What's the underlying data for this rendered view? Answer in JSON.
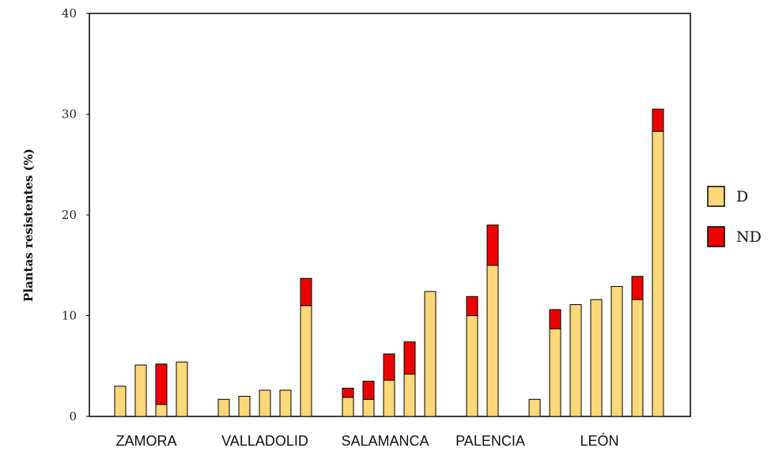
{
  "chart_data": {
    "type": "bar",
    "stacked": true,
    "title": "",
    "xlabel": "",
    "ylabel": "Plantas resistentes (%)",
    "ylim": [
      0,
      40
    ],
    "yticks": [
      "0",
      "10",
      "20",
      "30",
      "40"
    ],
    "grid": false,
    "legend_position": "right",
    "groups": [
      "ZAMORA",
      "VALLADOLID",
      "SALAMANCA",
      "PALENCIA",
      "LEÓN"
    ],
    "group_sizes": [
      4,
      5,
      5,
      2,
      7
    ],
    "series": [
      {
        "name": "D",
        "color": "#FED778",
        "values": [
          3.0,
          5.1,
          1.2,
          5.4,
          1.7,
          2.0,
          2.6,
          2.6,
          11.0,
          1.9,
          1.7,
          3.6,
          4.2,
          12.4,
          10.0,
          15.0,
          1.7,
          8.7,
          11.1,
          11.6,
          12.9,
          11.6,
          28.3
        ]
      },
      {
        "name": "ND",
        "color": "#EE0000",
        "values": [
          0,
          0,
          4.0,
          0,
          0,
          0,
          0,
          0,
          2.7,
          0.9,
          1.8,
          2.6,
          3.2,
          0,
          1.9,
          4.0,
          0,
          1.9,
          0,
          0,
          0,
          2.3,
          2.2
        ]
      }
    ]
  }
}
